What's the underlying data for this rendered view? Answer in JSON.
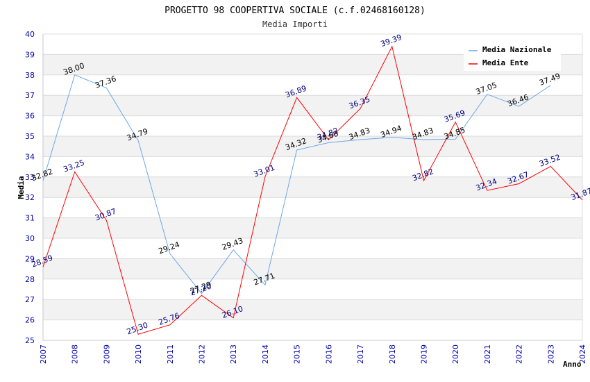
{
  "chart_data": {
    "type": "line",
    "title": "PROGETTO 98 COOPERTIVA SOCIALE (c.f.02468160128)",
    "subtitle": "Media Importi",
    "xlabel": "Anno",
    "ylabel": "Media",
    "x": [
      "2007",
      "2008",
      "2009",
      "2010",
      "2011",
      "2012",
      "2013",
      "2014",
      "2015",
      "2016",
      "2017",
      "2018",
      "2019",
      "2020",
      "2021",
      "2022",
      "2023",
      "2024"
    ],
    "ylim": [
      25,
      40
    ],
    "yticks": [
      "25",
      "26",
      "27",
      "28",
      "29",
      "30",
      "31",
      "32",
      "33",
      "34",
      "35",
      "36",
      "37",
      "38",
      "39",
      "40"
    ],
    "legend_position": "top-right",
    "series": [
      {
        "name": "Media Nazionale",
        "color": "#6aa8e8",
        "values": [
          32.82,
          38.0,
          37.36,
          34.79,
          29.24,
          27.29,
          29.43,
          27.71,
          34.32,
          34.68,
          34.83,
          34.94,
          34.83,
          34.85,
          37.05,
          36.46,
          37.49,
          null
        ],
        "labels": [
          "32.82",
          "38.00",
          "37.36",
          "34.79",
          "29.24",
          "27.29",
          "29.43",
          "27.71",
          "34.32",
          "34.68",
          "34.83",
          "34.94",
          "34.83",
          "34.85",
          "37.05",
          "36.46",
          "37.49",
          ""
        ]
      },
      {
        "name": "Media Ente",
        "color": "#ff0000",
        "values": [
          28.59,
          33.25,
          30.87,
          25.3,
          25.76,
          27.2,
          26.1,
          33.01,
          36.89,
          34.82,
          36.35,
          39.39,
          32.82,
          35.69,
          32.34,
          32.67,
          33.52,
          31.87
        ],
        "labels": [
          "28.59",
          "33.25",
          "30.87",
          "25.30",
          "25.76",
          "27.20",
          "26.10",
          "33.01",
          "36.89",
          "34.82",
          "36.35",
          "39.39",
          "32.82",
          "35.69",
          "32.34",
          "32.67",
          "33.52",
          "31.87"
        ]
      }
    ]
  }
}
